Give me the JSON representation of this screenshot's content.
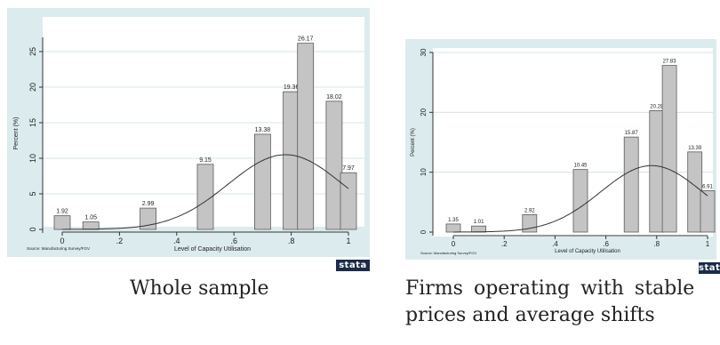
{
  "chart_data": [
    {
      "type": "bar",
      "caption": "Whole sample",
      "ylabel": "Percent (%)",
      "xlabel": "Level of Capacity Utilisation",
      "source": "Source: Manufacturing Survey/FGV",
      "logo": "stata",
      "xlim": [
        0,
        1
      ],
      "ylim": [
        0,
        27
      ],
      "yticks": [
        0,
        5,
        10,
        15,
        20,
        25
      ],
      "xticks": [
        0,
        0.2,
        0.4,
        0.6,
        0.8,
        1
      ],
      "xtick_labels": [
        "0",
        ".2",
        ".4",
        ".6",
        ".8",
        "1"
      ],
      "bars": [
        {
          "x": 0.0,
          "value": 1.92,
          "label": "1.92"
        },
        {
          "x": 0.1,
          "value": 1.05,
          "label": "1.05"
        },
        {
          "x": 0.3,
          "value": 2.99,
          "label": "2.99"
        },
        {
          "x": 0.5,
          "value": 9.15,
          "label": "9.15"
        },
        {
          "x": 0.7,
          "value": 13.38,
          "label": "13.38"
        },
        {
          "x": 0.8,
          "value": 19.36,
          "label": "19.36"
        },
        {
          "x": 0.85,
          "value": 26.17,
          "label": "26.17"
        },
        {
          "x": 0.95,
          "value": 18.02,
          "label": "18.02"
        },
        {
          "x": 1.0,
          "value": 7.97,
          "label": "7.97"
        }
      ],
      "normal_curve": {
        "mean": 0.78,
        "sd": 0.2,
        "peak": 10.5
      }
    },
    {
      "type": "bar",
      "caption": "Firms operating with stable prices and average shifts",
      "ylabel": "Percent (%)",
      "xlabel": "Level of Capacity Utilisation",
      "source": "Source: Manufacturing Survey/FGV",
      "logo": "stata",
      "xlim": [
        0,
        1
      ],
      "ylim": [
        0,
        30
      ],
      "yticks": [
        0,
        10,
        20,
        30
      ],
      "xticks": [
        0,
        0.2,
        0.4,
        0.6,
        0.8,
        1
      ],
      "xtick_labels": [
        "0",
        ".2",
        ".4",
        ".6",
        ".8",
        "1"
      ],
      "bars": [
        {
          "x": 0.0,
          "value": 1.35,
          "label": "1.35"
        },
        {
          "x": 0.1,
          "value": 1.01,
          "label": "1.01"
        },
        {
          "x": 0.3,
          "value": 2.92,
          "label": "2.92"
        },
        {
          "x": 0.5,
          "value": 10.45,
          "label": "10.45"
        },
        {
          "x": 0.7,
          "value": 15.87,
          "label": "15.87"
        },
        {
          "x": 0.8,
          "value": 20.28,
          "label": "20.28"
        },
        {
          "x": 0.85,
          "value": 27.83,
          "label": "27.83"
        },
        {
          "x": 0.95,
          "value": 13.39,
          "label": "13.39"
        },
        {
          "x": 1.0,
          "value": 6.91,
          "label": "6.91"
        }
      ],
      "normal_curve": {
        "mean": 0.78,
        "sd": 0.2,
        "peak": 11.1
      }
    }
  ],
  "captions": {
    "left": "Whole sample",
    "right_line1": "Firms operating with stable",
    "right_line2": "prices and average shifts"
  }
}
